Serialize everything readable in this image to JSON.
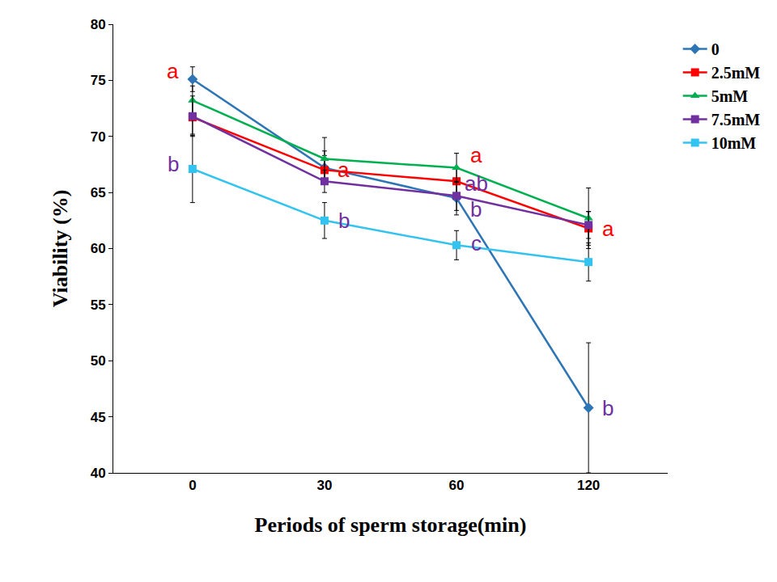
{
  "chart_data": {
    "type": "line",
    "x_label": "Periods of sperm storage(min)",
    "y_label": "Viability (%)",
    "categories": [
      "0",
      "30",
      "60",
      "120"
    ],
    "ylim": [
      40,
      80
    ],
    "yticks": [
      40,
      45,
      50,
      55,
      60,
      65,
      70,
      75,
      80
    ],
    "grid": false,
    "legend": "right",
    "series": [
      {
        "name": "0",
        "color": "#2e75b6",
        "marker": "diamond",
        "values": [
          75.1,
          67.2,
          64.5,
          45.8
        ],
        "errors": [
          1.1,
          1.5,
          1.5,
          5.8
        ]
      },
      {
        "name": "2.5mM",
        "color": "#ff0000",
        "marker": "square",
        "values": [
          71.7,
          67.0,
          66.0,
          61.8
        ],
        "errors": [
          1.5,
          1.3,
          1.2,
          1.5
        ]
      },
      {
        "name": "5mM",
        "color": "#00b050",
        "marker": "triangle-up",
        "values": [
          73.2,
          68.0,
          67.2,
          62.7
        ],
        "errors": [
          1.3,
          1.9,
          1.3,
          2.7
        ]
      },
      {
        "name": "7.5mM",
        "color": "#7030a0",
        "marker": "square",
        "values": [
          71.8,
          66.0,
          64.7,
          62.1
        ],
        "errors": [
          1.8,
          1.0,
          1.3,
          1.2
        ]
      },
      {
        "name": "10mM",
        "color": "#33c3f0",
        "marker": "square",
        "values": [
          67.1,
          62.5,
          60.3,
          58.8
        ],
        "errors": [
          3.0,
          1.6,
          1.3,
          1.7
        ]
      }
    ],
    "annotations": [
      {
        "text": "a",
        "x": "0",
        "y": 75.8,
        "color": "#ff0000"
      },
      {
        "text": "b",
        "x": "0",
        "y": 67.5,
        "color": "#7030a0"
      },
      {
        "text": "a",
        "x": "30",
        "y": 67.0,
        "color": "#ff0000"
      },
      {
        "text": "b",
        "x": "30",
        "y": 62.5,
        "color": "#7030a0"
      },
      {
        "text": "a",
        "x": "60",
        "y": 68.3,
        "color": "#ff0000"
      },
      {
        "text": "ab",
        "x": "60",
        "y": 65.8,
        "color": "#7030a0"
      },
      {
        "text": "b",
        "x": "60",
        "y": 63.5,
        "color": "#7030a0"
      },
      {
        "text": "c",
        "x": "60",
        "y": 60.5,
        "color": "#7030a0"
      },
      {
        "text": "a",
        "x": "120",
        "y": 61.8,
        "color": "#ff0000"
      },
      {
        "text": "b",
        "x": "120",
        "y": 45.8,
        "color": "#7030a0"
      }
    ]
  }
}
